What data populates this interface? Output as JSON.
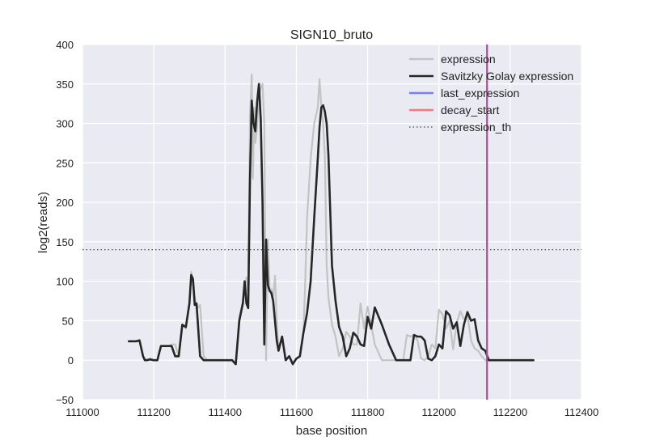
{
  "chart_data": {
    "type": "line",
    "title": "SIGN10_bruto",
    "xlabel": "base position",
    "ylabel": "log2(reads)",
    "xlim": [
      111000,
      112400
    ],
    "ylim": [
      -50,
      400
    ],
    "xticks": [
      "111000",
      "111200",
      "111400",
      "111600",
      "111800",
      "112000",
      "112200",
      "112400"
    ],
    "yticks": [
      "−50",
      "0",
      "50",
      "100",
      "150",
      "200",
      "250",
      "300",
      "350",
      "400"
    ],
    "grid": true,
    "background": "#EAEAF2",
    "legend_position": "top-right",
    "legend": [
      {
        "label": "expression",
        "color": "#c3c3c3",
        "style": "solid"
      },
      {
        "label": "Savitzky Golay expression",
        "color": "#262626",
        "style": "solid"
      },
      {
        "label": "last_expression",
        "color": "#7b7bf2",
        "style": "solid"
      },
      {
        "label": "decay_start",
        "color": "#f27b7b",
        "style": "solid"
      },
      {
        "label": "expression_th",
        "color": "#444444",
        "style": "dotted"
      }
    ],
    "expression_threshold": 140,
    "vertical_line_x": 112135,
    "vertical_line_color": "#b04a9a",
    "series": [
      {
        "name": "expression",
        "color": "#c3c3c3",
        "x": [
          111130,
          111150,
          111160,
          111170,
          111180,
          111190,
          111200,
          111210,
          111220,
          111240,
          111250,
          111260,
          111270,
          111280,
          111290,
          111300,
          111305,
          111310,
          111320,
          111330,
          111340,
          111350,
          111360,
          111380,
          111400,
          111420,
          111430,
          111440,
          111450,
          111460,
          111462,
          111465,
          111470,
          111475,
          111478,
          111482,
          111485,
          111490,
          111495,
          111500,
          111505,
          111510,
          111515,
          111520,
          111525,
          111530,
          111535,
          111540,
          111545,
          111550,
          111560,
          111570,
          111580,
          111590,
          111600,
          111610,
          111620,
          111625,
          111630,
          111640,
          111650,
          111660,
          111665,
          111670,
          111675,
          111680,
          111685,
          111690,
          111700,
          111710,
          111720,
          111730,
          111740,
          111750,
          111760,
          111770,
          111780,
          111790,
          111800,
          111810,
          111820,
          111840,
          111860,
          111880,
          111900,
          111910,
          111920,
          111930,
          111940,
          111950,
          111960,
          111970,
          111980,
          111990,
          112000,
          112010,
          112020,
          112030,
          112040,
          112050,
          112060,
          112070,
          112080,
          112090,
          112100,
          112110,
          112120,
          112130,
          112140,
          112150,
          112160,
          112200,
          112265
        ],
        "values": [
          24,
          24,
          26,
          5,
          0,
          2,
          0,
          0,
          18,
          18,
          20,
          20,
          5,
          45,
          40,
          70,
          112,
          95,
          65,
          70,
          5,
          0,
          0,
          0,
          0,
          0,
          -5,
          55,
          75,
          105,
          80,
          95,
          310,
          362,
          230,
          320,
          275,
          295,
          335,
          345,
          350,
          300,
          0,
          153,
          90,
          90,
          80,
          107,
          50,
          15,
          30,
          0,
          5,
          -3,
          2,
          5,
          35,
          100,
          180,
          255,
          300,
          320,
          356,
          320,
          300,
          260,
          120,
          80,
          45,
          30,
          5,
          15,
          36,
          30,
          20,
          20,
          72,
          40,
          68,
          45,
          20,
          0,
          0,
          0,
          0,
          32,
          30,
          32,
          25,
          2,
          0,
          5,
          20,
          15,
          64,
          58,
          40,
          50,
          14,
          48,
          62,
          52,
          58,
          25,
          15,
          12,
          5,
          0,
          0,
          0,
          0,
          0,
          0
        ]
      },
      {
        "name": "Savitzky Golay expression",
        "color": "#262626",
        "x": [
          111130,
          111150,
          111160,
          111170,
          111175,
          111180,
          111190,
          111200,
          111210,
          111220,
          111230,
          111240,
          111250,
          111260,
          111270,
          111280,
          111290,
          111300,
          111305,
          111310,
          111315,
          111320,
          111330,
          111340,
          111350,
          111360,
          111380,
          111400,
          111420,
          111430,
          111440,
          111450,
          111455,
          111460,
          111465,
          111470,
          111475,
          111480,
          111485,
          111490,
          111495,
          111500,
          111505,
          111510,
          111515,
          111520,
          111525,
          111530,
          111535,
          111540,
          111545,
          111550,
          111560,
          111570,
          111580,
          111590,
          111600,
          111610,
          111620,
          111630,
          111640,
          111650,
          111660,
          111665,
          111670,
          111675,
          111680,
          111685,
          111690,
          111700,
          111710,
          111720,
          111730,
          111740,
          111750,
          111760,
          111770,
          111780,
          111790,
          111800,
          111810,
          111820,
          111840,
          111860,
          111880,
          111900,
          111910,
          111920,
          111930,
          111940,
          111950,
          111960,
          111970,
          111980,
          111990,
          112000,
          112010,
          112020,
          112030,
          112040,
          112050,
          112060,
          112070,
          112080,
          112090,
          112100,
          112110,
          112120,
          112130,
          112140,
          112150,
          112160,
          112200,
          112265
        ],
        "values": [
          24,
          24,
          25,
          5,
          0,
          0,
          1,
          0,
          0,
          18,
          18,
          18,
          18,
          5,
          5,
          45,
          42,
          72,
          108,
          103,
          70,
          72,
          5,
          0,
          0,
          0,
          0,
          0,
          0,
          -5,
          50,
          72,
          100,
          72,
          66,
          230,
          329,
          300,
          290,
          327,
          350,
          305,
          200,
          20,
          153,
          95,
          88,
          85,
          75,
          50,
          25,
          12,
          30,
          0,
          5,
          -5,
          2,
          5,
          35,
          60,
          100,
          180,
          255,
          295,
          320,
          323,
          315,
          300,
          260,
          120,
          75,
          42,
          30,
          5,
          15,
          35,
          30,
          20,
          18,
          55,
          40,
          67,
          45,
          20,
          0,
          0,
          0,
          0,
          32,
          30,
          30,
          25,
          2,
          0,
          5,
          20,
          15,
          62,
          57,
          40,
          48,
          18,
          45,
          61,
          50,
          52,
          25,
          15,
          12,
          0,
          0,
          0,
          0,
          0
        ]
      }
    ]
  }
}
